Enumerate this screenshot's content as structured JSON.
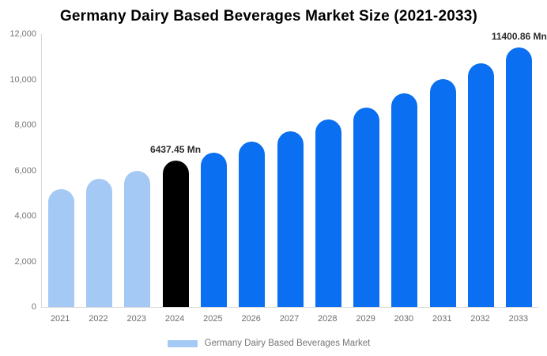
{
  "title": "Germany Dairy Based Beverages Market Size (2021-2033)",
  "legend": {
    "label": "Germany Dairy Based Beverages Market"
  },
  "colors": {
    "past": "#A4C9F4",
    "base_year": "#000000",
    "forecast": "#0A6FF1",
    "axis_line": "#D9D9D9",
    "tick_text": "#757575",
    "data_label": "#2D2D2D",
    "title_text": "#000000",
    "background": "#FFFFFF"
  },
  "y_axis": {
    "ticks": [
      "12,000",
      "10,000",
      "8,000",
      "6,000",
      "4,000",
      "2,000",
      "0"
    ],
    "tick_values": [
      12000,
      10000,
      8000,
      6000,
      4000,
      2000,
      0
    ]
  },
  "chart_data": {
    "type": "bar",
    "title": "Germany Dairy Based Beverages Market Size (2021-2033)",
    "xlabel": "",
    "ylabel": "",
    "ylim": [
      0,
      12000
    ],
    "grid": false,
    "legend_position": "bottom",
    "categories": [
      "2021",
      "2022",
      "2023",
      "2024",
      "2025",
      "2026",
      "2027",
      "2028",
      "2029",
      "2030",
      "2031",
      "2032",
      "2033"
    ],
    "values": [
      5200,
      5640,
      5990,
      6437.45,
      6800,
      7270,
      7720,
      8260,
      8780,
      9400,
      10010,
      10700,
      11400.86
    ],
    "bar_roles": [
      "past",
      "past",
      "past",
      "base_year",
      "forecast",
      "forecast",
      "forecast",
      "forecast",
      "forecast",
      "forecast",
      "forecast",
      "forecast",
      "forecast"
    ],
    "point_labels": [
      "",
      "",
      "",
      "6437.45 Mn",
      "",
      "",
      "",
      "",
      "",
      "",
      "",
      "",
      "11400.86 Mn"
    ],
    "series": [
      {
        "name": "Germany Dairy Based Beverages Market",
        "values": [
          5200,
          5640,
          5990,
          6437.45,
          6800,
          7270,
          7720,
          8260,
          8780,
          9400,
          10010,
          10700,
          11400.86
        ]
      }
    ]
  }
}
